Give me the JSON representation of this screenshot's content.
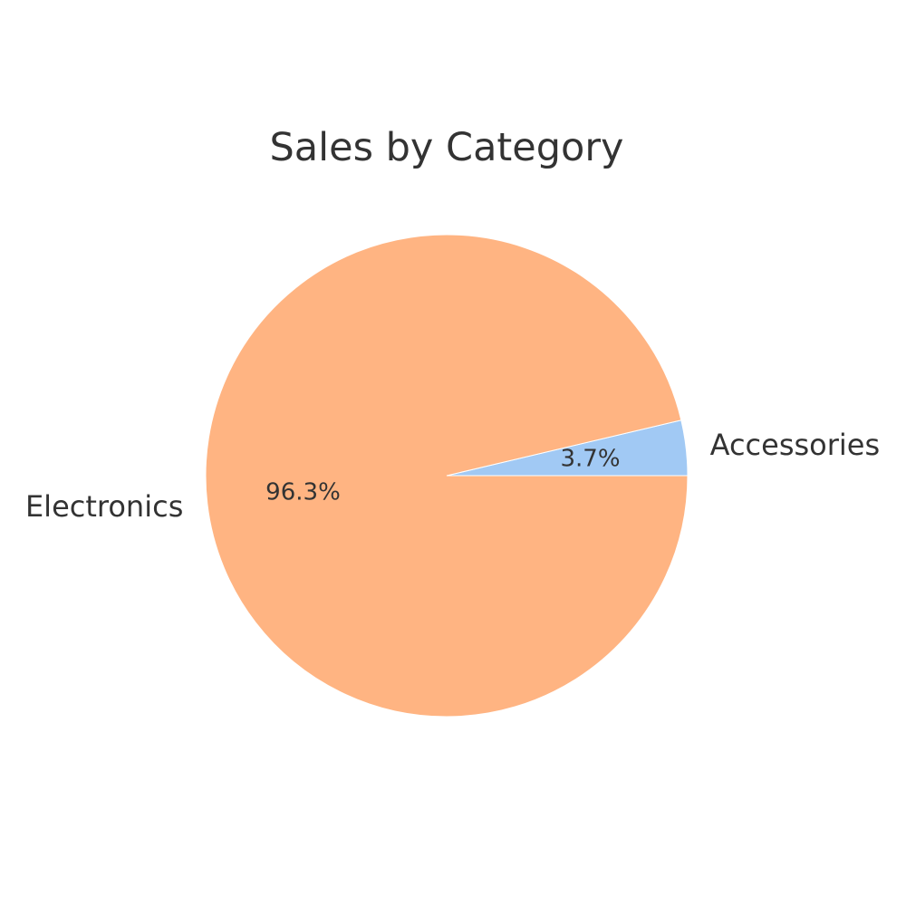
{
  "chart_data": {
    "type": "pie",
    "title": "Sales by Category",
    "categories": [
      "Accessories",
      "Electronics"
    ],
    "values": [
      3.7,
      96.3
    ],
    "percent_labels": [
      "3.7%",
      "96.3%"
    ],
    "colors": [
      "#a1c9f4",
      "#ffb482"
    ],
    "start_angle_deg": 0,
    "direction": "counterclockwise",
    "legend": "none"
  }
}
